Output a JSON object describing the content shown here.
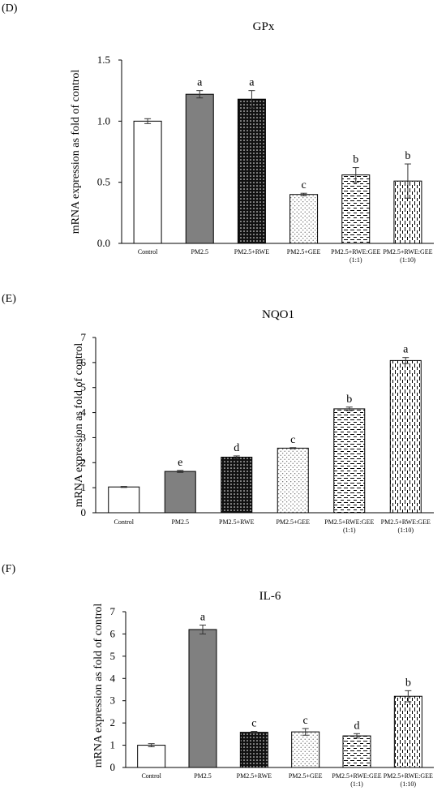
{
  "figure": {
    "panels": [
      "(D)",
      "(E)",
      "(F)"
    ]
  },
  "chart_data": [
    {
      "type": "bar",
      "panel": "(D)",
      "title": "GPx",
      "ylabel": "mRNA expression as fold of control",
      "ylim": [
        0,
        1.5
      ],
      "yticks": [
        "0.0",
        "0.5",
        "1.0",
        "1.5"
      ],
      "categories": [
        [
          "Control"
        ],
        [
          "PM2.5"
        ],
        [
          "PM2.5+RWE"
        ],
        [
          "PM2.5+GEE"
        ],
        [
          "PM2.5+RWE:GEE",
          "(1:1)"
        ],
        [
          "PM2.5+RWE:GEE",
          "(1:10)"
        ]
      ],
      "values": [
        1.0,
        1.22,
        1.18,
        0.4,
        0.56,
        0.51
      ],
      "errors": [
        0.02,
        0.03,
        0.07,
        0.01,
        0.06,
        0.14
      ],
      "letters": [
        "",
        "a",
        "a",
        "c",
        "b",
        "b"
      ],
      "fills": [
        "white",
        "gray",
        "dots-black",
        "dots-light",
        "dash-h",
        "dash-v"
      ]
    },
    {
      "type": "bar",
      "panel": "(E)",
      "title": "NQO1",
      "ylabel": "mRNA expression as fold of control",
      "ylim": [
        0,
        7
      ],
      "yticks": [
        "0",
        "1",
        "2",
        "3",
        "4",
        "5",
        "6",
        "7"
      ],
      "categories": [
        [
          "Control"
        ],
        [
          "PM2.5"
        ],
        [
          "PM2.5+RWE"
        ],
        [
          "PM2.5+GEE"
        ],
        [
          "PM2.5+RWE:GEE",
          "(1:1)"
        ],
        [
          "PM2.5+RWE:GEE",
          "(1:10)"
        ]
      ],
      "values": [
        1.03,
        1.65,
        2.22,
        2.58,
        4.15,
        6.08
      ],
      "errors": [
        0.02,
        0.04,
        0.05,
        0.02,
        0.07,
        0.12
      ],
      "letters": [
        "",
        "e",
        "d",
        "c",
        "b",
        "a"
      ],
      "fills": [
        "white",
        "gray",
        "dots-black",
        "dots-light",
        "dash-h",
        "dash-v"
      ]
    },
    {
      "type": "bar",
      "panel": "(F)",
      "title": "IL-6",
      "ylabel": "mRNA expression as fold of control",
      "ylim": [
        0,
        7
      ],
      "yticks": [
        "0",
        "1",
        "2",
        "3",
        "4",
        "5",
        "6",
        "7"
      ],
      "categories": [
        [
          "Control"
        ],
        [
          "PM2.5"
        ],
        [
          "PM2.5+RWE"
        ],
        [
          "PM2.5+GEE"
        ],
        [
          "PM2.5+RWE:GEE",
          "(1:1)"
        ],
        [
          "PM2.5+RWE:GEE",
          "(1:10)"
        ]
      ],
      "values": [
        1.0,
        6.2,
        1.58,
        1.6,
        1.42,
        3.2
      ],
      "errors": [
        0.07,
        0.2,
        0.04,
        0.15,
        0.1,
        0.25
      ],
      "letters": [
        "",
        "a",
        "c",
        "c",
        "d",
        "b"
      ],
      "fills": [
        "white",
        "gray",
        "dots-black",
        "dots-light",
        "dash-h",
        "dash-v"
      ]
    }
  ]
}
